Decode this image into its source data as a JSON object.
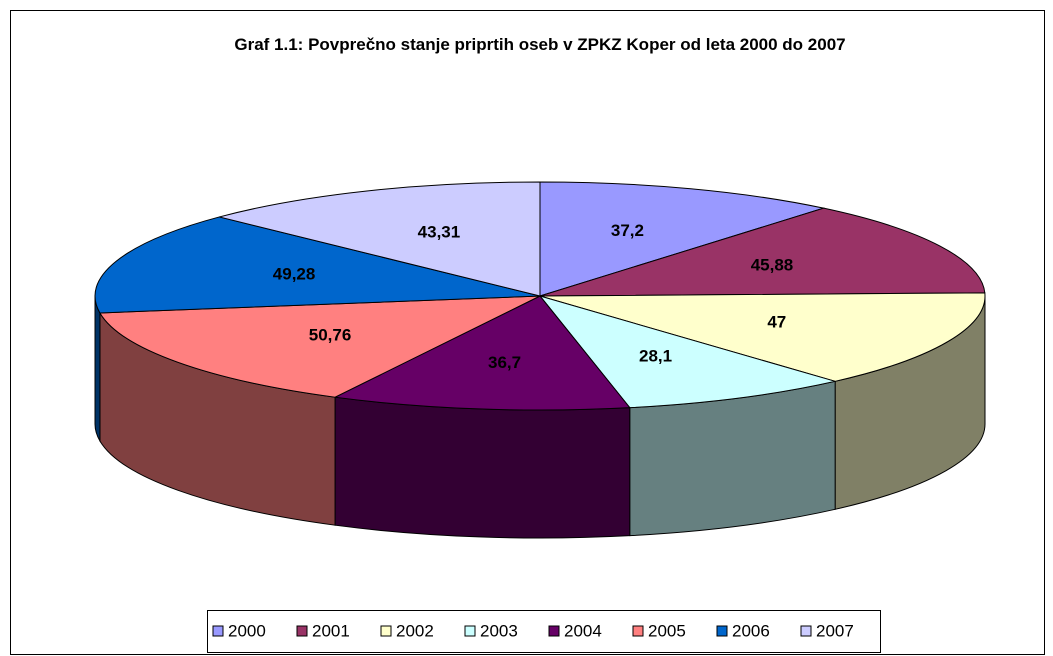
{
  "chart_data": {
    "type": "pie3d",
    "title": "Graf 1.1: Povprečno stanje priprtih oseb v ZPKZ Koper od leta 2000 do 2007",
    "categories": [
      "2000",
      "2001",
      "2002",
      "2003",
      "2004",
      "2005",
      "2006",
      "2007"
    ],
    "values": [
      37.2,
      45.88,
      47,
      28.1,
      36.7,
      50.76,
      49.28,
      43.31
    ],
    "value_labels": [
      "37,2",
      "45,88",
      "47",
      "28,1",
      "36,7",
      "50,76",
      "49,28",
      "43,31"
    ],
    "colors": [
      "#9999FF",
      "#993366",
      "#FFFFCC",
      "#CCFFFF",
      "#660066",
      "#FF8080",
      "#0066CC",
      "#CCCCFF"
    ],
    "legend": "bottom"
  }
}
